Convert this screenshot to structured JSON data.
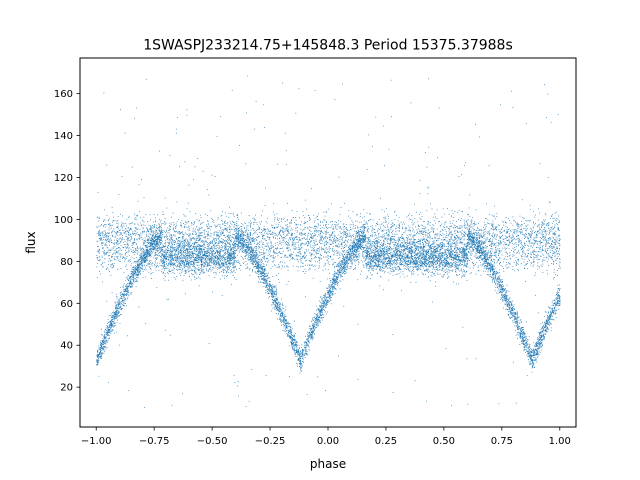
{
  "chart_data": {
    "type": "scatter",
    "title": "1SWASPJ233214.75+145848.3 Period 15375.37988s",
    "xlabel": "phase",
    "ylabel": "flux",
    "xlim": [
      -1.07,
      1.07
    ],
    "ylim": [
      1,
      177
    ],
    "xticks": [
      -1.0,
      -0.75,
      -0.5,
      -0.25,
      0.0,
      0.25,
      0.5,
      0.75,
      1.0
    ],
    "xtick_labels": [
      "−1.00",
      "−0.75",
      "−0.50",
      "−0.25",
      "0.00",
      "0.25",
      "0.50",
      "0.75",
      "1.00"
    ],
    "yticks": [
      20,
      40,
      60,
      80,
      100,
      120,
      140,
      160
    ],
    "ytick_labels": [
      "20",
      "40",
      "60",
      "80",
      "100",
      "120",
      "140",
      "160"
    ],
    "grid": false,
    "legend": "none",
    "point_color": "#1f77b4",
    "series": [
      {
        "phase_range": [
          -1.0,
          1.0
        ],
        "baseline_flux": 92,
        "baseline_spread": 7,
        "eclipse_phases": [
          -1.0,
          -0.12,
          0.88
        ],
        "eclipse_min_flux": 33,
        "eclipse_half_width_phase": 0.28,
        "secondary_band_flux": 82,
        "flare_phases": [
          -0.55,
          0.45
        ],
        "flare_max_flux": 140,
        "point_count": 14000
      }
    ]
  }
}
